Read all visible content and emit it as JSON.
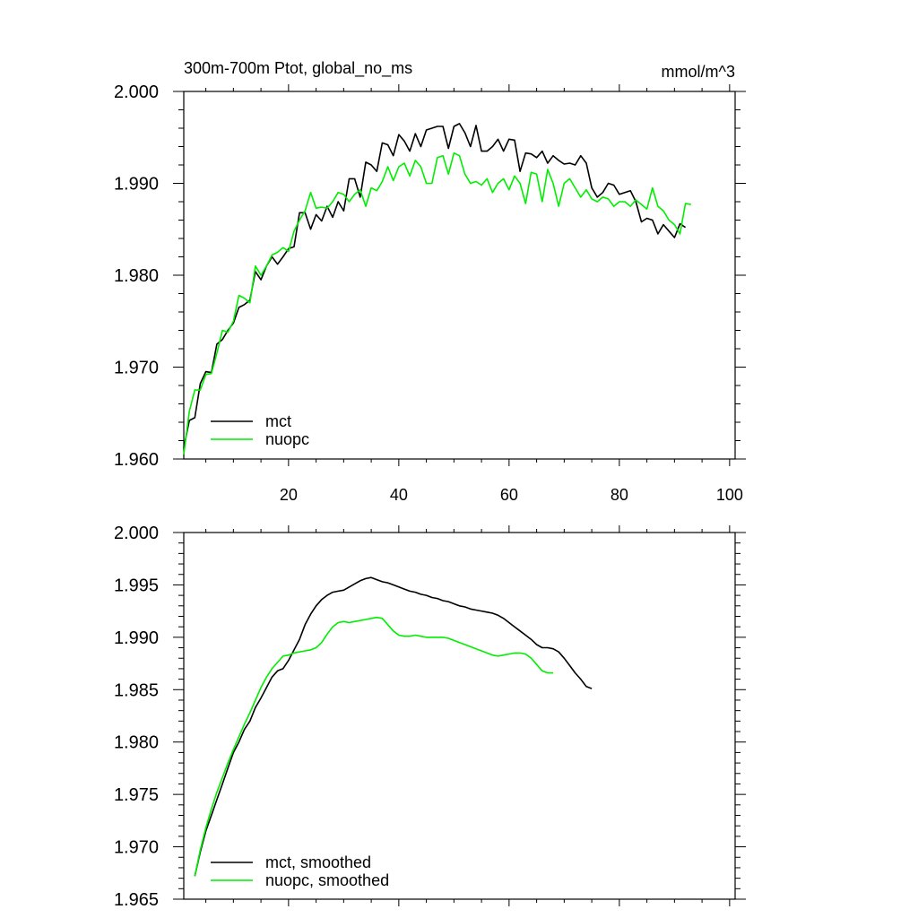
{
  "chart_data": [
    {
      "type": "line",
      "title": "300m-700m Ptot, global_no_ms",
      "units": "mmol/m^3",
      "xlim": [
        1,
        101
      ],
      "ylim": [
        1.96,
        2.0
      ],
      "xticks": [
        "20",
        "40",
        "60",
        "80",
        "100"
      ],
      "yticks": [
        "1.960",
        "1.970",
        "1.980",
        "1.990",
        "2.000"
      ],
      "legend_position": "lower-left",
      "series": [
        {
          "name": "mct",
          "color": "#000000",
          "y": [
            1.9612,
            1.9642,
            1.9645,
            1.9682,
            1.9695,
            1.9694,
            1.9725,
            1.973,
            1.974,
            1.9748,
            1.9765,
            1.9768,
            1.9773,
            1.9804,
            1.9795,
            1.981,
            1.982,
            1.9812,
            1.982,
            1.9829,
            1.9831,
            1.9868,
            1.9868,
            1.985,
            1.9866,
            1.9859,
            1.9875,
            1.9863,
            1.988,
            1.987,
            1.9905,
            1.9905,
            1.9885,
            1.9923,
            1.992,
            1.9913,
            1.9944,
            1.9942,
            1.993,
            1.9953,
            1.9946,
            1.9935,
            1.9954,
            1.994,
            1.9958,
            1.996,
            1.9962,
            1.9962,
            1.9938,
            1.9962,
            1.9965,
            1.9955,
            1.994,
            1.9963,
            1.9935,
            1.9935,
            1.994,
            1.9948,
            1.9935,
            1.9948,
            1.9947,
            1.9913,
            1.9933,
            1.9932,
            1.9928,
            1.9935,
            1.9922,
            1.993,
            1.9925,
            1.9921,
            1.9922,
            1.992,
            1.993,
            1.9922,
            1.9895,
            1.9885,
            1.989,
            1.99,
            1.9898,
            1.9888,
            1.989,
            1.9892,
            1.988,
            1.9858,
            1.9862,
            1.986,
            1.9845,
            1.9855,
            1.9848,
            1.9841,
            1.9856,
            1.9852
          ]
        },
        {
          "name": "nuopc",
          "color": "#00ee00",
          "y": [
            1.9605,
            1.9652,
            1.9675,
            1.9675,
            1.9692,
            1.9693,
            1.9715,
            1.974,
            1.9738,
            1.975,
            1.9778,
            1.9775,
            1.977,
            1.981,
            1.98,
            1.981,
            1.9822,
            1.9825,
            1.983,
            1.9826,
            1.9848,
            1.986,
            1.987,
            1.989,
            1.9873,
            1.9874,
            1.9873,
            1.988,
            1.989,
            1.9888,
            1.988,
            1.9888,
            1.9893,
            1.9875,
            1.9895,
            1.9892,
            1.9902,
            1.9918,
            1.9903,
            1.9918,
            1.9922,
            1.9908,
            1.9925,
            1.9918,
            1.99,
            1.99,
            1.9928,
            1.993,
            1.991,
            1.9933,
            1.993,
            1.991,
            1.99,
            1.9902,
            1.9898,
            1.9905,
            1.989,
            1.99,
            1.9905,
            1.9893,
            1.9908,
            1.99,
            1.9878,
            1.9912,
            1.991,
            1.988,
            1.9915,
            1.99,
            1.9875,
            1.99,
            1.9905,
            1.9895,
            1.9885,
            1.9893,
            1.9883,
            1.988,
            1.9885,
            1.9883,
            1.9875,
            1.988,
            1.988,
            1.9875,
            1.9882,
            1.9877,
            1.9872,
            1.9895,
            1.9875,
            1.987,
            1.986,
            1.9855,
            1.9845,
            1.9878,
            1.9877
          ]
        }
      ]
    },
    {
      "type": "line",
      "xlim": [
        1,
        101
      ],
      "ylim": [
        1.965,
        2.0
      ],
      "yticks": [
        "1.965",
        "1.970",
        "1.975",
        "1.980",
        "1.985",
        "1.990",
        "1.995",
        "2.000"
      ],
      "legend_position": "lower-left",
      "series": [
        {
          "name": "mct, smoothed",
          "color": "#000000",
          "x_start": 3,
          "y": [
            1.9672,
            1.9695,
            1.9715,
            1.973,
            1.9745,
            1.976,
            1.9775,
            1.979,
            1.98,
            1.9812,
            1.982,
            1.9833,
            1.9842,
            1.9852,
            1.9862,
            1.9868,
            1.987,
            1.9878,
            1.9888,
            1.9898,
            1.9912,
            1.9922,
            1.993,
            1.9936,
            1.994,
            1.9943,
            1.9944,
            1.9945,
            1.9948,
            1.9951,
            1.9954,
            1.9956,
            1.9957,
            1.9955,
            1.9953,
            1.9952,
            1.995,
            1.9948,
            1.9946,
            1.9944,
            1.9943,
            1.9941,
            1.994,
            1.9938,
            1.9937,
            1.9935,
            1.9934,
            1.9932,
            1.993,
            1.9929,
            1.9927,
            1.9926,
            1.9925,
            1.9924,
            1.9923,
            1.9921,
            1.9918,
            1.9914,
            1.991,
            1.9906,
            1.9902,
            1.9898,
            1.9893,
            1.989,
            1.989,
            1.9889,
            1.9886,
            1.988,
            1.9873,
            1.9866,
            1.986,
            1.9853,
            1.9851
          ]
        },
        {
          "name": "nuopc, smoothed",
          "color": "#00ee00",
          "x_start": 3,
          "y": [
            1.9672,
            1.9697,
            1.9718,
            1.9736,
            1.9752,
            1.9766,
            1.978,
            1.9793,
            1.9805,
            1.9817,
            1.9828,
            1.984,
            1.9852,
            1.9862,
            1.987,
            1.9876,
            1.9882,
            1.9883,
            1.9885,
            1.9886,
            1.9887,
            1.9888,
            1.989,
            1.9895,
            1.9903,
            1.991,
            1.9914,
            1.9915,
            1.9914,
            1.9915,
            1.9916,
            1.9917,
            1.9918,
            1.9919,
            1.9918,
            1.9912,
            1.9906,
            1.9902,
            1.9901,
            1.9901,
            1.9902,
            1.9901,
            1.99,
            1.99,
            1.99,
            1.99,
            1.9899,
            1.9897,
            1.9895,
            1.9893,
            1.9891,
            1.9889,
            1.9887,
            1.9885,
            1.9883,
            1.9882,
            1.9883,
            1.9884,
            1.9885,
            1.9885,
            1.9884,
            1.988,
            1.9874,
            1.9868,
            1.9866,
            1.9866
          ]
        }
      ]
    }
  ]
}
